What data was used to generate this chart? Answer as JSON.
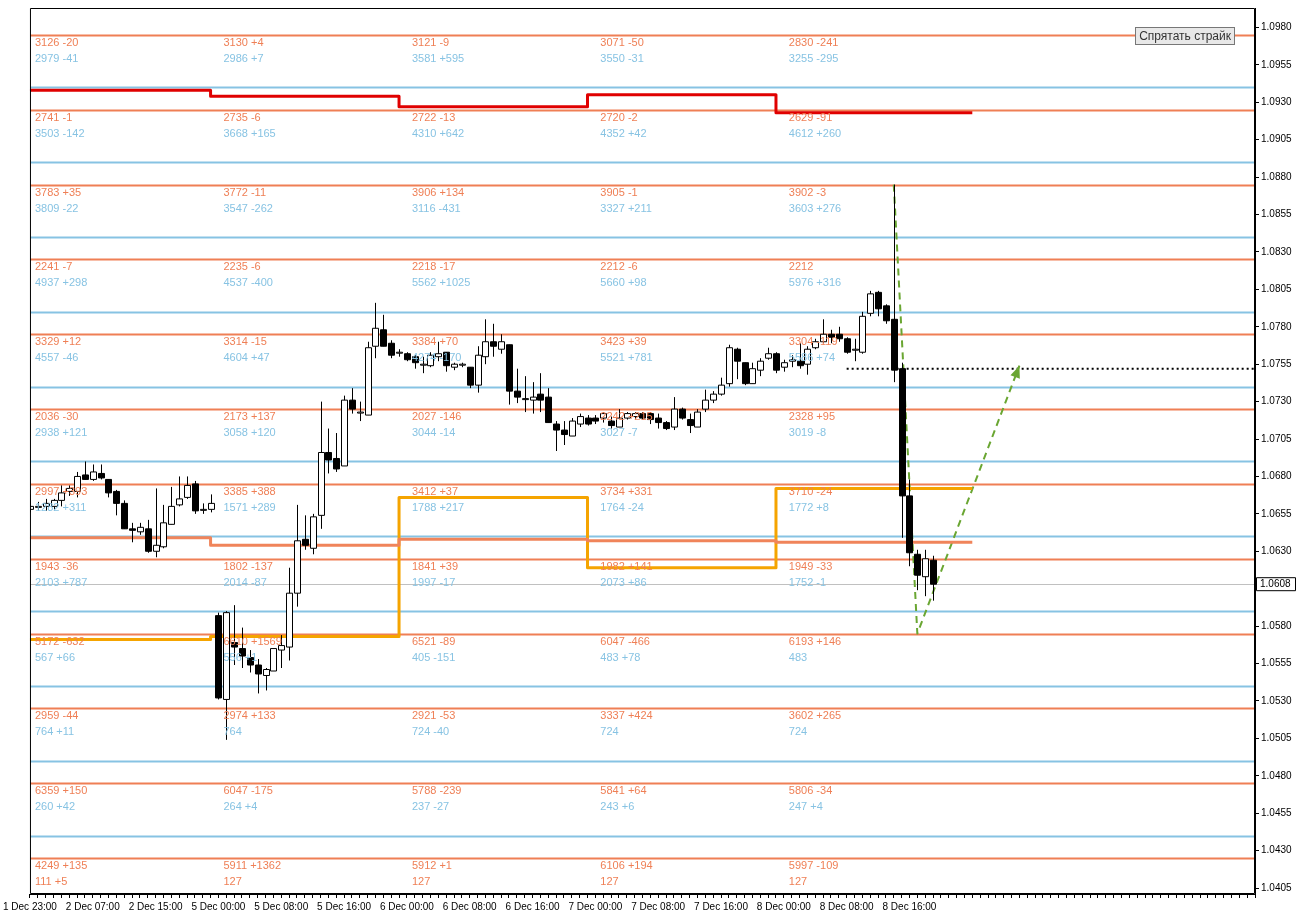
{
  "chart_data": {
    "type": "candlestick",
    "categories": [
      "1 Dec 23:00",
      null,
      null,
      null,
      null,
      null,
      null,
      null,
      "2 Dec 07:00",
      null,
      null,
      null,
      null,
      null,
      null,
      null,
      "2 Dec 15:00",
      null,
      null,
      null,
      null,
      null,
      null,
      null,
      "5 Dec 00:00",
      null,
      null,
      null,
      null,
      null,
      null,
      null,
      "5 Dec 08:00",
      null,
      null,
      null,
      null,
      null,
      null,
      null,
      "5 Dec 16:00",
      null,
      null,
      null,
      null,
      null,
      null,
      null,
      "6 Dec 00:00",
      null,
      null,
      null,
      null,
      null,
      null,
      null,
      "6 Dec 08:00",
      null,
      null,
      null,
      null,
      null,
      null,
      null,
      "6 Dec 16:00",
      null,
      null,
      null,
      null,
      null,
      null,
      null,
      "7 Dec 00:00",
      null,
      null,
      null,
      null,
      null,
      null,
      null,
      "7 Dec 08:00",
      null,
      null,
      null,
      null,
      null,
      null,
      null,
      "7 Dec 16:00",
      null,
      null,
      null,
      null,
      null,
      null,
      null,
      "8 Dec 00:00",
      null,
      null,
      null,
      null,
      null,
      null,
      null,
      "8 Dec 08:00",
      null,
      null,
      null,
      null,
      null,
      null,
      null,
      "8 Dec 16:00",
      null,
      null,
      null,
      null,
      null,
      null,
      null,
      null,
      null,
      null,
      null,
      null,
      null,
      null,
      null,
      null,
      null,
      null,
      null,
      null,
      null,
      null,
      null,
      null,
      null,
      null,
      null,
      null,
      null,
      null,
      null,
      null,
      null,
      null,
      null,
      null,
      null,
      null,
      null,
      null,
      null,
      null,
      null,
      null
    ],
    "ohlc": [
      [
        1.0658,
        1.0668,
        1.0656,
        1.066
      ],
      [
        1.066,
        1.0663,
        1.0657,
        1.066
      ],
      [
        1.066,
        1.0665,
        1.0657,
        1.0662
      ],
      [
        1.066,
        1.0665,
        1.0658,
        1.0664
      ],
      [
        1.0664,
        1.0674,
        1.066,
        1.0669
      ],
      [
        1.067,
        1.0674,
        1.0667,
        1.0672
      ],
      [
        1.067,
        1.0683,
        1.0666,
        1.068
      ],
      [
        1.0681,
        1.069,
        1.0678,
        1.0678
      ],
      [
        1.0678,
        1.0688,
        1.0677,
        1.0683
      ],
      [
        1.0682,
        1.0688,
        1.0678,
        1.0679
      ],
      [
        1.0678,
        1.0678,
        1.0666,
        1.0669
      ],
      [
        1.067,
        1.0671,
        1.0654,
        1.0662
      ],
      [
        1.0662,
        1.0664,
        1.0645,
        1.0645
      ],
      [
        1.0645,
        1.0649,
        1.0636,
        1.0644
      ],
      [
        1.0643,
        1.0649,
        1.0641,
        1.0646
      ],
      [
        1.0645,
        1.0651,
        1.0629,
        1.063
      ],
      [
        1.063,
        1.0672,
        1.0626,
        1.0634
      ],
      [
        1.0633,
        1.0661,
        1.0632,
        1.0649
      ],
      [
        1.0648,
        1.0673,
        1.0648,
        1.066
      ],
      [
        1.0661,
        1.068,
        1.066,
        1.0665
      ],
      [
        1.0666,
        1.068,
        1.0665,
        1.0674
      ],
      [
        1.0675,
        1.0677,
        1.0655,
        1.0657
      ],
      [
        1.0658,
        1.0662,
        1.0655,
        1.0658
      ],
      [
        1.0658,
        1.0668,
        1.0656,
        1.0662
      ],
      [
        1.0587,
        1.0589,
        1.0531,
        1.0532
      ],
      [
        1.0531,
        1.059,
        1.0504,
        1.0589
      ],
      [
        1.0569,
        1.0594,
        1.0554,
        1.0566
      ],
      [
        1.0565,
        1.0579,
        1.0552,
        1.056
      ],
      [
        1.0559,
        1.0564,
        1.0549,
        1.0554
      ],
      [
        1.0554,
        1.0558,
        1.0535,
        1.0548
      ],
      [
        1.0547,
        1.0552,
        1.0537,
        1.0551
      ],
      [
        1.055,
        1.0565,
        1.055,
        1.0565
      ],
      [
        1.0564,
        1.0574,
        1.0552,
        1.0567
      ],
      [
        1.0566,
        1.0619,
        1.0557,
        1.0602
      ],
      [
        1.0602,
        1.0661,
        1.0593,
        1.0637
      ],
      [
        1.0638,
        1.0654,
        1.0631,
        1.0634
      ],
      [
        1.0632,
        1.0655,
        1.0628,
        1.0653
      ],
      [
        1.0654,
        1.073,
        1.0645,
        1.0696
      ],
      [
        1.0696,
        1.0712,
        1.0682,
        1.0691
      ],
      [
        1.0692,
        1.0709,
        1.0683,
        1.0685
      ],
      [
        1.0687,
        1.0734,
        1.0687,
        1.0731
      ],
      [
        1.0731,
        1.0739,
        1.0722,
        1.0725
      ],
      [
        1.0723,
        1.073,
        1.0717,
        1.0723
      ],
      [
        1.0721,
        1.077,
        1.0721,
        1.0766
      ],
      [
        1.0767,
        1.0796,
        1.0759,
        1.0779
      ],
      [
        1.0778,
        1.0788,
        1.0767,
        1.0767
      ],
      [
        1.0769,
        1.0771,
        1.0759,
        1.0761
      ],
      [
        1.0763,
        1.0765,
        1.076,
        1.0763
      ],
      [
        1.0762,
        1.0763,
        1.0757,
        1.0758
      ],
      [
        1.076,
        1.0761,
        1.0752,
        1.0756
      ],
      [
        1.0755,
        1.076,
        1.0749,
        1.0755
      ],
      [
        1.0754,
        1.0763,
        1.0753,
        1.0761
      ],
      [
        1.076,
        1.077,
        1.0757,
        1.0762
      ],
      [
        1.0763,
        1.0763,
        1.075,
        1.0754
      ],
      [
        1.0753,
        1.0756,
        1.0751,
        1.0755
      ],
      [
        1.0755,
        1.0756,
        1.0753,
        1.0755
      ],
      [
        1.0753,
        1.0753,
        1.0739,
        1.0741
      ],
      [
        1.0741,
        1.0767,
        1.0736,
        1.0761
      ],
      [
        1.076,
        1.0785,
        1.0755,
        1.077
      ],
      [
        1.077,
        1.0782,
        1.076,
        1.0767
      ],
      [
        1.0765,
        1.0775,
        1.0762,
        1.077
      ],
      [
        1.0768,
        1.0768,
        1.0728,
        1.0737
      ],
      [
        1.0737,
        1.0752,
        1.0729,
        1.0733
      ],
      [
        1.0732,
        1.0747,
        1.0723,
        1.0732
      ],
      [
        1.0731,
        1.0743,
        1.0722,
        1.0733
      ],
      [
        1.0735,
        1.0749,
        1.0723,
        1.0731
      ],
      [
        1.0733,
        1.0739,
        1.0716,
        1.0716
      ],
      [
        1.0715,
        1.0717,
        1.0697,
        1.0711
      ],
      [
        1.0711,
        1.0717,
        1.0701,
        1.0708
      ],
      [
        1.0707,
        1.0719,
        1.0707,
        1.0717
      ],
      [
        1.0715,
        1.0722,
        1.0713,
        1.072
      ],
      [
        1.0719,
        1.0721,
        1.0714,
        1.0715
      ],
      [
        1.0719,
        1.0721,
        1.0715,
        1.0717
      ],
      [
        1.0719,
        1.0723,
        1.0716,
        1.0722
      ],
      [
        1.0717,
        1.072,
        1.0712,
        1.0714
      ],
      [
        1.0713,
        1.0725,
        1.0713,
        1.0719
      ],
      [
        1.0719,
        1.0723,
        1.0718,
        1.0722
      ],
      [
        1.072,
        1.0723,
        1.0718,
        1.0722
      ],
      [
        1.0722,
        1.0723,
        1.0718,
        1.0719
      ],
      [
        1.0722,
        1.0723,
        1.0715,
        1.0718
      ],
      [
        1.0719,
        1.0722,
        1.0712,
        1.0716
      ],
      [
        1.0716,
        1.0717,
        1.0711,
        1.0712
      ],
      [
        1.0713,
        1.0733,
        1.0711,
        1.0725
      ],
      [
        1.0725,
        1.0726,
        1.0718,
        1.0719
      ],
      [
        1.0718,
        1.0722,
        1.0709,
        1.0714
      ],
      [
        1.0713,
        1.0725,
        1.0713,
        1.0723
      ],
      [
        1.0725,
        1.0738,
        1.0723,
        1.0731
      ],
      [
        1.0731,
        1.0737,
        1.0729,
        1.0735
      ],
      [
        1.0735,
        1.0746,
        1.0734,
        1.0741
      ],
      [
        1.0742,
        1.0768,
        1.074,
        1.0766
      ],
      [
        1.0765,
        1.0766,
        1.0745,
        1.0757
      ],
      [
        1.0756,
        1.0756,
        1.0741,
        1.0742
      ],
      [
        1.0742,
        1.0756,
        1.0742,
        1.0752
      ],
      [
        1.0751,
        1.0759,
        1.0747,
        1.0757
      ],
      [
        1.0759,
        1.0766,
        1.0758,
        1.0762
      ],
      [
        1.0762,
        1.0763,
        1.0749,
        1.0751
      ],
      [
        1.0753,
        1.0758,
        1.075,
        1.0756
      ],
      [
        1.0757,
        1.0761,
        1.0753,
        1.0758
      ],
      [
        1.0757,
        1.0769,
        1.0752,
        1.0754
      ],
      [
        1.0755,
        1.0767,
        1.0748,
        1.0765
      ],
      [
        1.0766,
        1.0772,
        1.0765,
        1.077
      ],
      [
        1.077,
        1.0785,
        1.0769,
        1.0775
      ],
      [
        1.0775,
        1.0778,
        1.0769,
        1.0773
      ],
      [
        1.0775,
        1.078,
        1.077,
        1.0772
      ],
      [
        1.0772,
        1.0773,
        1.0762,
        1.0763
      ],
      [
        1.0765,
        1.0772,
        1.0757,
        1.0765
      ],
      [
        1.0763,
        1.079,
        1.0762,
        1.0787
      ],
      [
        1.0789,
        1.0804,
        1.0787,
        1.0802
      ],
      [
        1.0803,
        1.0804,
        1.0787,
        1.0792
      ],
      [
        1.0794,
        1.0795,
        1.0782,
        1.0784
      ],
      [
        1.0785,
        1.0875,
        1.0743,
        1.0751
      ],
      [
        1.0752,
        1.0756,
        1.0639,
        1.0667
      ],
      [
        1.0667,
        1.0678,
        1.062,
        1.0629
      ],
      [
        1.0628,
        1.0631,
        1.0604,
        1.0614
      ],
      [
        1.0613,
        1.0631,
        1.06,
        1.0625
      ],
      [
        1.0624,
        1.0627,
        1.0597,
        1.0608
      ],
      null,
      null,
      null,
      null,
      null,
      null,
      null,
      null,
      null,
      null,
      null,
      null,
      null,
      null,
      null,
      null,
      null,
      null,
      null,
      null,
      null,
      null,
      null,
      null,
      null,
      null,
      null,
      null,
      null,
      null,
      null,
      null,
      null,
      null,
      null,
      null,
      null,
      null,
      null,
      null,
      null
    ],
    "series": [
      {
        "type": "step",
        "color": "#e00000",
        "values": [
          1.0938,
          1.0938,
          1.0938,
          1.0938,
          1.0938,
          1.0938,
          1.0938,
          1.0938,
          1.0938,
          1.0938,
          1.0938,
          1.0938,
          1.0938,
          1.0938,
          1.0938,
          1.0938,
          1.0938,
          1.0938,
          1.0938,
          1.0938,
          1.0938,
          1.0938,
          1.0938,
          1.0938,
          1.0934,
          1.0934,
          1.0934,
          1.0934,
          1.0934,
          1.0934,
          1.0934,
          1.0934,
          1.0934,
          1.0934,
          1.0934,
          1.0934,
          1.0934,
          1.0934,
          1.0934,
          1.0934,
          1.0934,
          1.0934,
          1.0934,
          1.0934,
          1.0934,
          1.0934,
          1.0934,
          1.0934,
          1.0927,
          1.0927,
          1.0927,
          1.0927,
          1.0927,
          1.0927,
          1.0927,
          1.0927,
          1.0927,
          1.0927,
          1.0927,
          1.0927,
          1.0927,
          1.0927,
          1.0927,
          1.0927,
          1.0927,
          1.0927,
          1.0927,
          1.0927,
          1.0927,
          1.0927,
          1.0927,
          1.0927,
          1.0935,
          1.0935,
          1.0935,
          1.0935,
          1.0935,
          1.0935,
          1.0935,
          1.0935,
          1.0935,
          1.0935,
          1.0935,
          1.0935,
          1.0935,
          1.0935,
          1.0935,
          1.0935,
          1.0935,
          1.0935,
          1.0935,
          1.0935,
          1.0935,
          1.0935,
          1.0935,
          1.0935,
          1.0923,
          1.0923,
          1.0923,
          1.0923,
          1.0923,
          1.0923,
          1.0923,
          1.0923,
          1.0923,
          1.0923,
          1.0923,
          1.0923,
          1.0923,
          1.0923,
          1.0923,
          1.0923,
          1.0923,
          1.0923,
          1.0923,
          1.0923,
          1.0923,
          1.0923,
          1.0923,
          1.0923,
          1.0923,
          null,
          null,
          null,
          null,
          null,
          null,
          null,
          null,
          null,
          null,
          null,
          null,
          null,
          null,
          null,
          null,
          null,
          null,
          null,
          null,
          null,
          null,
          null,
          null,
          null,
          null,
          null,
          null,
          null,
          null,
          null,
          null,
          null,
          null,
          null,
          null
        ]
      },
      {
        "type": "step",
        "color": "#f0845a",
        "values": [
          1.0639,
          1.0639,
          1.0639,
          1.0639,
          1.0639,
          1.0639,
          1.0639,
          1.0639,
          1.0639,
          1.0639,
          1.0639,
          1.0639,
          1.0639,
          1.0639,
          1.0639,
          1.0639,
          1.0639,
          1.0639,
          1.0639,
          1.0639,
          1.0639,
          1.0639,
          1.0639,
          1.0639,
          1.0634,
          1.0634,
          1.0634,
          1.0634,
          1.0634,
          1.0634,
          1.0634,
          1.0634,
          1.0634,
          1.0634,
          1.0634,
          1.0634,
          1.0634,
          1.0634,
          1.0634,
          1.0634,
          1.0634,
          1.0634,
          1.0634,
          1.0634,
          1.0634,
          1.0634,
          1.0634,
          1.0634,
          1.0638,
          1.0638,
          1.0638,
          1.0638,
          1.0638,
          1.0638,
          1.0638,
          1.0638,
          1.0638,
          1.0638,
          1.0638,
          1.0638,
          1.0638,
          1.0638,
          1.0638,
          1.0638,
          1.0638,
          1.0638,
          1.0638,
          1.0638,
          1.0638,
          1.0638,
          1.0638,
          1.0638,
          1.0637,
          1.0637,
          1.0637,
          1.0637,
          1.0637,
          1.0637,
          1.0637,
          1.0637,
          1.0637,
          1.0637,
          1.0637,
          1.0637,
          1.0637,
          1.0637,
          1.0637,
          1.0637,
          1.0637,
          1.0637,
          1.0637,
          1.0637,
          1.0637,
          1.0637,
          1.0637,
          1.0637,
          1.0636,
          1.0636,
          1.0636,
          1.0636,
          1.0636,
          1.0636,
          1.0636,
          1.0636,
          1.0636,
          1.0636,
          1.0636,
          1.0636,
          1.0636,
          1.0636,
          1.0636,
          1.0636,
          1.0636,
          1.0636,
          1.0636,
          1.0636,
          1.0636,
          1.0636,
          1.0636,
          1.0636,
          1.0636,
          null,
          null,
          null,
          null,
          null,
          null,
          null,
          null,
          null,
          null,
          null,
          null,
          null,
          null,
          null,
          null,
          null,
          null,
          null,
          null,
          null,
          null,
          null,
          null,
          null,
          null,
          null,
          null,
          null,
          null,
          null,
          null,
          null,
          null,
          null,
          null
        ]
      },
      {
        "type": "step",
        "color": "#f5a400",
        "values": [
          1.0571,
          1.0571,
          1.0571,
          1.0571,
          1.0571,
          1.0571,
          1.0571,
          1.0571,
          1.0571,
          1.0571,
          1.0571,
          1.0571,
          1.0571,
          1.0571,
          1.0571,
          1.0571,
          1.0571,
          1.0571,
          1.0571,
          1.0571,
          1.0571,
          1.0571,
          1.0571,
          1.0571,
          1.0573,
          1.0573,
          1.0573,
          1.0573,
          1.0573,
          1.0573,
          1.0573,
          1.0573,
          1.0573,
          1.0573,
          1.0573,
          1.0573,
          1.0573,
          1.0573,
          1.0573,
          1.0573,
          1.0573,
          1.0573,
          1.0573,
          1.0573,
          1.0573,
          1.0573,
          1.0573,
          1.0573,
          1.0666,
          1.0666,
          1.0666,
          1.0666,
          1.0666,
          1.0666,
          1.0666,
          1.0666,
          1.0666,
          1.0666,
          1.0666,
          1.0666,
          1.0666,
          1.0666,
          1.0666,
          1.0666,
          1.0666,
          1.0666,
          1.0666,
          1.0666,
          1.0666,
          1.0666,
          1.0666,
          1.0666,
          1.0619,
          1.0619,
          1.0619,
          1.0619,
          1.0619,
          1.0619,
          1.0619,
          1.0619,
          1.0619,
          1.0619,
          1.0619,
          1.0619,
          1.0619,
          1.0619,
          1.0619,
          1.0619,
          1.0619,
          1.0619,
          1.0619,
          1.0619,
          1.0619,
          1.0619,
          1.0619,
          1.0619,
          1.0672,
          1.0672,
          1.0672,
          1.0672,
          1.0672,
          1.0672,
          1.0672,
          1.0672,
          1.0672,
          1.0672,
          1.0672,
          1.0672,
          1.0672,
          1.0672,
          1.0672,
          1.0672,
          1.0672,
          1.0672,
          1.0672,
          1.0672,
          1.0672,
          1.0672,
          1.0672,
          1.0672,
          1.0672,
          null,
          null,
          null,
          null,
          null,
          null,
          null,
          null,
          null,
          null,
          null,
          null,
          null,
          null,
          null,
          null,
          null,
          null,
          null,
          null,
          null,
          null,
          null,
          null,
          null,
          null,
          null,
          null,
          null,
          null,
          null,
          null,
          null,
          null,
          null,
          null
        ]
      },
      {
        "type": "line",
        "color": "#000000",
        "line_style": "dotted",
        "values": [
          null,
          null,
          null,
          null,
          null,
          null,
          null,
          null,
          null,
          null,
          null,
          null,
          null,
          null,
          null,
          null,
          null,
          null,
          null,
          null,
          null,
          null,
          null,
          null,
          null,
          null,
          null,
          null,
          null,
          null,
          null,
          null,
          null,
          null,
          null,
          null,
          null,
          null,
          null,
          null,
          null,
          null,
          null,
          null,
          null,
          null,
          null,
          null,
          null,
          null,
          null,
          null,
          null,
          null,
          null,
          null,
          null,
          null,
          null,
          null,
          null,
          null,
          null,
          null,
          null,
          null,
          null,
          null,
          null,
          null,
          null,
          null,
          null,
          null,
          null,
          null,
          null,
          null,
          null,
          null,
          null,
          null,
          null,
          null,
          null,
          null,
          null,
          null,
          null,
          null,
          null,
          null,
          null,
          null,
          null,
          null,
          null,
          null,
          null,
          null,
          null,
          null,
          null,
          null,
          1.0752,
          1.0752,
          1.0752,
          1.0752,
          1.0752,
          1.0752,
          1.0752,
          1.0752,
          1.0752,
          1.0752,
          1.0752,
          1.0752,
          1.0752,
          1.0752,
          1.0752,
          1.0752,
          1.0752,
          1.0752,
          1.0752,
          1.0752,
          1.0752,
          1.0752,
          1.0752,
          1.0752,
          1.0752,
          1.0752,
          1.0752,
          1.0752,
          1.0752,
          1.0752,
          1.0752,
          1.0752,
          1.0752,
          1.0752,
          1.0752,
          1.0752,
          1.0752,
          1.0752,
          1.0752,
          1.0752,
          1.0752,
          1.0752,
          1.0752,
          1.0752,
          1.0752,
          1.0752,
          1.0752,
          1.0752,
          1.0752,
          1.0752,
          1.0752,
          1.0752,
          1.0752
        ]
      },
      {
        "type": "line",
        "color": "#6aa632",
        "line_style": "dashed",
        "values": [
          null,
          null,
          null,
          null,
          null,
          null,
          null,
          null,
          null,
          null,
          null,
          null,
          null,
          null,
          null,
          null,
          null,
          null,
          null,
          null,
          null,
          null,
          null,
          null,
          null,
          null,
          null,
          null,
          null,
          null,
          null,
          null,
          null,
          null,
          null,
          null,
          null,
          null,
          null,
          null,
          null,
          null,
          null,
          null,
          null,
          null,
          null,
          null,
          null,
          null,
          null,
          null,
          null,
          null,
          null,
          null,
          null,
          null,
          null,
          null,
          null,
          null,
          null,
          null,
          null,
          null,
          null,
          null,
          null,
          null,
          null,
          null,
          null,
          null,
          null,
          null,
          null,
          null,
          null,
          null,
          null,
          null,
          null,
          null,
          null,
          null,
          null,
          null,
          null,
          null,
          null,
          null,
          null,
          null,
          null,
          null,
          null,
          null,
          null,
          null,
          null,
          null,
          null,
          null,
          null,
          null,
          null,
          null,
          null,
          null,
          1.0875,
          null,
          null,
          1.0575,
          null,
          null,
          null,
          null,
          null,
          null,
          null,
          null,
          null,
          null,
          null,
          null,
          1.0754,
          null,
          null,
          null,
          null,
          null,
          null,
          null,
          null,
          null,
          null,
          null,
          null,
          null,
          null,
          null,
          null,
          null,
          null,
          null,
          null,
          null,
          null,
          null,
          null,
          null,
          null,
          null,
          null,
          null,
          null
        ]
      }
    ],
    "ylim": [
      1.0401,
      1.0993
    ],
    "yticks": [
      1.0405,
      {
        "value": 1.043,
        "label": "1.0430"
      },
      1.0455,
      {
        "value": 1.048,
        "label": "1.0480"
      },
      1.0505,
      {
        "value": 1.053,
        "label": "1.0530"
      },
      1.0555,
      {
        "value": 1.058,
        "label": "1.0580"
      },
      {
        "value": 1.0605,
        "label": null
      },
      {
        "value": 1.063,
        "label": "1.0630"
      },
      1.0655,
      {
        "value": 1.068,
        "label": "1.0680"
      },
      1.0705,
      {
        "value": 1.073,
        "label": "1.0730"
      },
      1.0755,
      {
        "value": 1.078,
        "label": "1.0780"
      },
      1.0805,
      {
        "value": 1.083,
        "label": "1.0830"
      },
      1.0855,
      {
        "value": 1.088,
        "label": "1.0880"
      },
      1.0905,
      {
        "value": 1.093,
        "label": "1.0930"
      },
      1.0955,
      {
        "value": 1.098,
        "label": "1.0980"
      }
    ],
    "ref_lines": [
      {
        "axis": "y",
        "value": 1.0975,
        "color": "#ef7f55"
      },
      {
        "axis": "y",
        "value": 1.094,
        "color": "#87c3e3"
      },
      {
        "axis": "y",
        "value": 1.0925,
        "color": "#ef7f55"
      },
      {
        "axis": "y",
        "value": 1.089,
        "color": "#87c3e3"
      },
      {
        "axis": "y",
        "value": 1.0875,
        "color": "#ef7f55"
      },
      {
        "axis": "y",
        "value": 1.084,
        "color": "#87c3e3"
      },
      {
        "axis": "y",
        "value": 1.0825,
        "color": "#ef7f55"
      },
      {
        "axis": "y",
        "value": 1.079,
        "color": "#87c3e3"
      },
      {
        "axis": "y",
        "value": 1.0775,
        "color": "#ef7f55"
      },
      {
        "axis": "y",
        "value": 1.074,
        "color": "#87c3e3"
      },
      {
        "axis": "y",
        "value": 1.0725,
        "color": "#ef7f55"
      },
      {
        "axis": "y",
        "value": 1.069,
        "color": "#87c3e3"
      },
      {
        "axis": "y",
        "value": 1.0675,
        "color": "#ef7f55"
      },
      {
        "axis": "y",
        "value": 1.064,
        "color": "#87c3e3"
      },
      {
        "axis": "y",
        "value": 1.0625,
        "color": "#ef7f55"
      },
      {
        "axis": "y",
        "value": 1.059,
        "color": "#87c3e3"
      },
      {
        "axis": "y",
        "value": 1.0575,
        "color": "#ef7f55"
      },
      {
        "axis": "y",
        "value": 1.054,
        "color": "#87c3e3"
      },
      {
        "axis": "y",
        "value": 1.0525,
        "color": "#ef7f55"
      },
      {
        "axis": "y",
        "value": 1.049,
        "color": "#87c3e3"
      },
      {
        "axis": "y",
        "value": 1.0475,
        "color": "#ef7f55"
      },
      {
        "axis": "y",
        "value": 1.044,
        "color": "#87c3e3"
      },
      {
        "axis": "y",
        "value": 1.0425,
        "color": "#ef7f55"
      },
      {
        "axis": "y",
        "value": 1.0608,
        "label": "1.0608",
        "color": "#c0c0c0"
      }
    ],
    "grid": false,
    "legend": false,
    "annotations": [
      "Спрятать страйк",
      "3126 -20",
      "2979 -41",
      "2741 -1",
      "3503 -142",
      "3783 +35",
      "3809 -22",
      "2241 -7",
      "4937 +298",
      "3329 +12",
      "4557 -46",
      "2036 -30",
      "2938 +121",
      "2997 +393",
      "1282 +311",
      "1943 -36",
      "2103 +787",
      "5172 -632",
      "567 +66",
      "2959 -44",
      "764 +11",
      "6359 +150",
      "260 +42",
      "4249 +135",
      "111 +5",
      "3130 +4",
      "2986 +7",
      "2735 -6",
      "3668 +165",
      "3772 -11",
      "3547 -262",
      "2235 -6",
      "4537 -400",
      "3314 -15",
      "4604 +47",
      "2173 +137",
      "3058 +120",
      "3385 +388",
      "1571 +289",
      "1802 -137",
      "2014 -87",
      "6610 +1569",
      "556 +1",
      "2974 +133",
      "764",
      "6047 -175",
      "264 +4",
      "5911 +1362",
      "127",
      "3121 -9",
      "3581 +595",
      "2722 -13",
      "4310 +642",
      "3906 +134",
      "3116 -431",
      "2218 -17",
      "5562 +1025",
      "3384 +70",
      "4274 -170",
      "2027 -146",
      "3044 -14",
      "3412 +37",
      "1788 +217",
      "1841 +39",
      "1997 -17",
      "6521 -89",
      "405 -151",
      "2921 -53",
      "724 -40",
      "5788 -239",
      "237 -27",
      "5912 +1",
      "127",
      "3071 -50",
      "3550 -31",
      "2720 -2",
      "4352 +42",
      "3905 -1",
      "3327 +211",
      "2212 -6",
      "5660 +98",
      "3423 +39",
      "5521 +781",
      "2242 +215",
      "3027 -7",
      "3734 +331",
      "1764 -24",
      "1982 +141",
      "2073 +86",
      "6047 -466",
      "483 +78",
      "3337 +424",
      "724",
      "5841 +64",
      "243 +6",
      "6106 +194",
      "127",
      "2830 -241",
      "3255 -295",
      "2629 -91",
      "4612 +260",
      "3902 -3",
      "3603 +276",
      "2212",
      "5976 +316",
      "3304 -119",
      "5586 +74",
      "2328 +95",
      "3019 -8",
      "3710 -24",
      "1772 +8",
      "1949 -33",
      "1752 -1",
      "6193 +146",
      "483",
      "3602 +265",
      "724",
      "5806 -34",
      "247 +4",
      "5997 -109",
      "127"
    ]
  }
}
